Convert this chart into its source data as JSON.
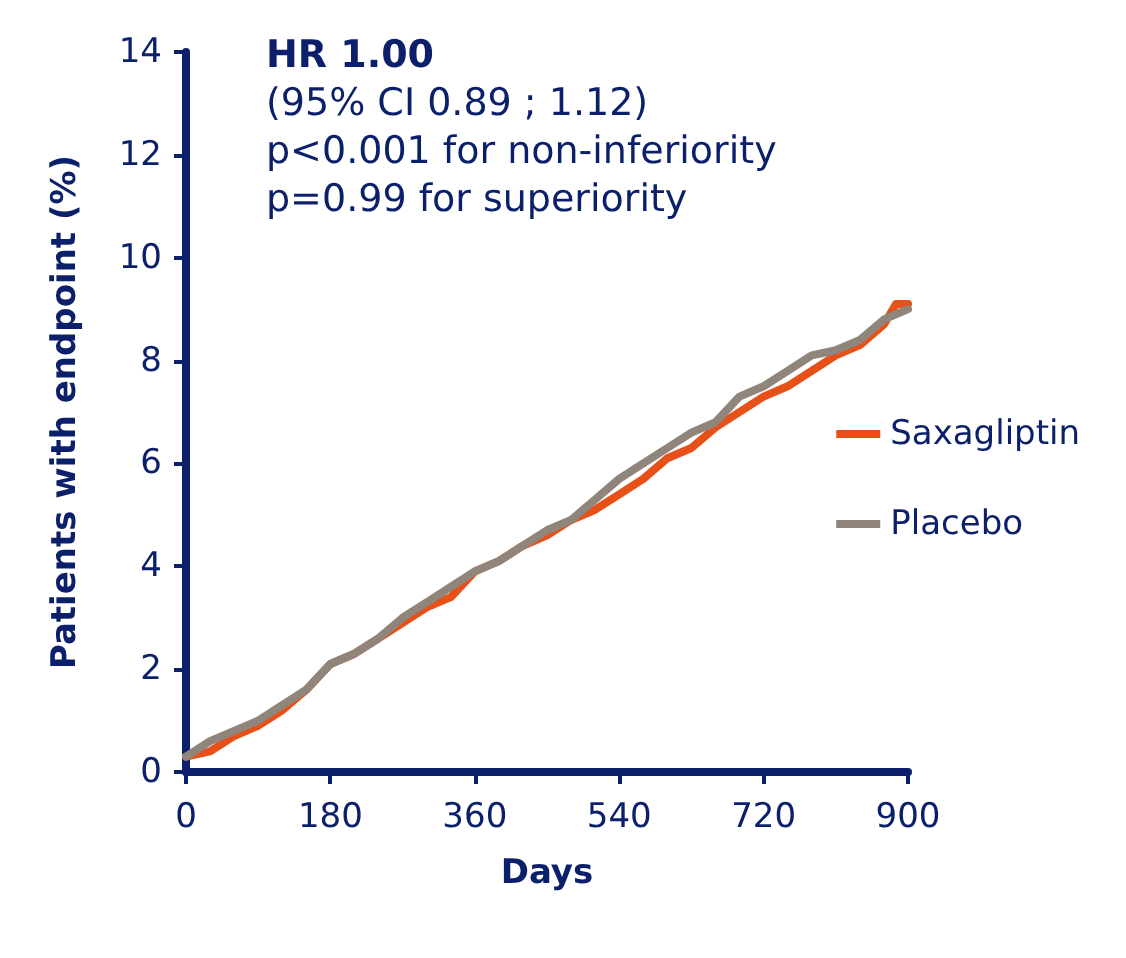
{
  "chart_data": {
    "type": "line",
    "xlabel": "Days",
    "ylabel": "Patients with endpoint (%)",
    "annotations": [
      "HR 1.00",
      "(95% CI 0.89 ; 1.12)",
      "p<0.001 for non-inferiority",
      "p=0.99 for superiority"
    ],
    "x": [
      0,
      30,
      60,
      90,
      120,
      150,
      180,
      210,
      240,
      270,
      300,
      330,
      360,
      390,
      420,
      450,
      480,
      510,
      540,
      570,
      600,
      630,
      660,
      690,
      720,
      750,
      780,
      810,
      840,
      870,
      885,
      900
    ],
    "series": [
      {
        "name": "Saxagliptin",
        "color": "#e8501a",
        "values": [
          0.3,
          0.4,
          0.7,
          0.9,
          1.2,
          1.6,
          2.1,
          2.3,
          2.6,
          2.9,
          3.2,
          3.4,
          3.9,
          4.1,
          4.4,
          4.6,
          4.9,
          5.1,
          5.4,
          5.7,
          6.1,
          6.3,
          6.7,
          7.0,
          7.3,
          7.5,
          7.8,
          8.1,
          8.3,
          8.7,
          9.1,
          9.1
        ]
      },
      {
        "name": "Placebo",
        "color": "#8f857a",
        "values": [
          0.3,
          0.6,
          0.8,
          1.0,
          1.3,
          1.6,
          2.1,
          2.3,
          2.6,
          3.0,
          3.3,
          3.6,
          3.9,
          4.1,
          4.4,
          4.7,
          4.9,
          5.3,
          5.7,
          6.0,
          6.3,
          6.6,
          6.8,
          7.3,
          7.5,
          7.8,
          8.1,
          8.2,
          8.4,
          8.8,
          8.9,
          9.0
        ]
      }
    ],
    "xlim": [
      0,
      900
    ],
    "xticks": [
      0,
      180,
      360,
      540,
      720,
      900
    ],
    "ylim": [
      0,
      14
    ],
    "yticks": [
      0,
      2,
      4,
      6,
      8,
      10,
      12,
      14
    ],
    "grid": false,
    "legend": "right",
    "marker": "none",
    "line_style": "solid"
  }
}
